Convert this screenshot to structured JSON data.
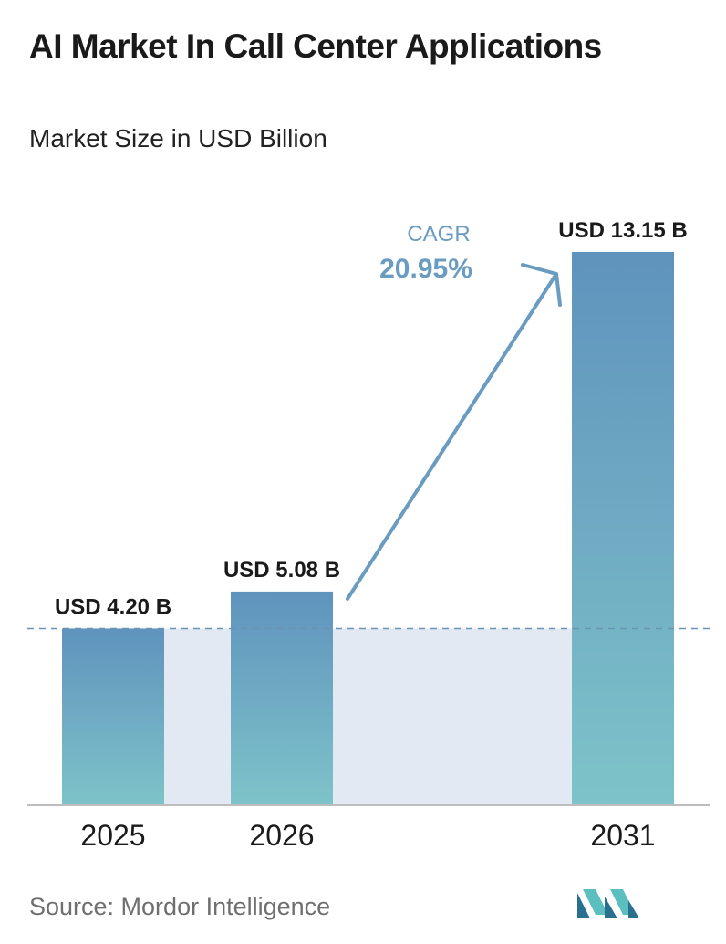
{
  "title": "AI Market In Call Center Applications",
  "subtitle": "Market Size in USD Billion",
  "source": "Source:  Mordor Intelligence",
  "colors": {
    "bar_top": "#5f93bd",
    "bar_bottom": "#7ec3c9",
    "band": "#e3e9f3",
    "dashed_line": "#6a94b3",
    "arrow": "#6a9bc0",
    "cagr_text": "#6a9bc0",
    "axis": "#bdbdbd"
  },
  "chart_data": {
    "type": "bar",
    "categories": [
      "2025",
      "2026",
      "2031"
    ],
    "values": [
      4.2,
      5.08,
      13.15
    ],
    "value_labels": [
      "USD 4.20 B",
      "USD 5.08 B",
      "USD 13.15 B"
    ],
    "title": "AI Market In Call Center Applications",
    "ylabel": "Market Size in USD Billion",
    "ylim": [
      0,
      13.15
    ],
    "grid": false,
    "annotations": {
      "cagr_label": "CAGR",
      "cagr_value": "20.95%"
    }
  }
}
